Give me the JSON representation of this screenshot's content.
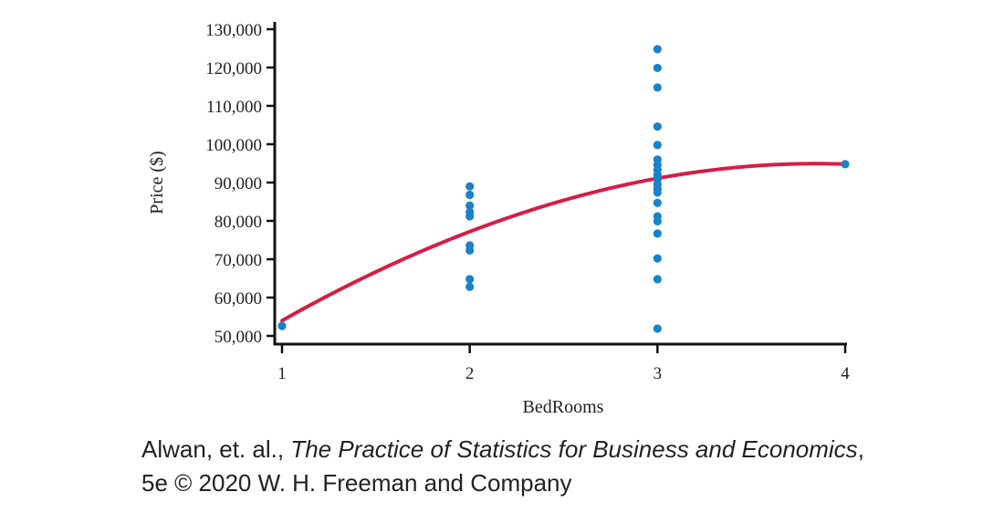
{
  "chart_data": {
    "type": "scatter",
    "xlabel": "BedRooms",
    "ylabel": "Price ($)",
    "xlim": [
      1,
      4
    ],
    "ylim": [
      50000,
      130000
    ],
    "x_ticks": [
      1,
      2,
      3,
      4
    ],
    "y_ticks": [
      50000,
      60000,
      70000,
      80000,
      90000,
      100000,
      110000,
      120000,
      130000
    ],
    "y_tick_labels": [
      "50,000",
      "60,000",
      "70,000",
      "80,000",
      "90,000",
      "100,000",
      "110,000",
      "120,000",
      "130,000"
    ],
    "x_tick_labels": [
      "1",
      "2",
      "3",
      "4"
    ],
    "grid": false,
    "legend": "none",
    "point_color": "#1a82c8",
    "curve_color": "#d41e45",
    "points": [
      {
        "x": 1,
        "y": 52600
      },
      {
        "x": 2,
        "y": 89000
      },
      {
        "x": 2,
        "y": 86800
      },
      {
        "x": 2,
        "y": 84000
      },
      {
        "x": 2,
        "y": 82300
      },
      {
        "x": 2,
        "y": 81200
      },
      {
        "x": 2,
        "y": 73600
      },
      {
        "x": 2,
        "y": 72300
      },
      {
        "x": 2,
        "y": 64800
      },
      {
        "x": 2,
        "y": 62800
      },
      {
        "x": 3,
        "y": 124800
      },
      {
        "x": 3,
        "y": 119900
      },
      {
        "x": 3,
        "y": 114800
      },
      {
        "x": 3,
        "y": 104600
      },
      {
        "x": 3,
        "y": 99800
      },
      {
        "x": 3,
        "y": 96000
      },
      {
        "x": 3,
        "y": 94600
      },
      {
        "x": 3,
        "y": 93300
      },
      {
        "x": 3,
        "y": 92000
      },
      {
        "x": 3,
        "y": 90800
      },
      {
        "x": 3,
        "y": 89500
      },
      {
        "x": 3,
        "y": 88300
      },
      {
        "x": 3,
        "y": 87400
      },
      {
        "x": 3,
        "y": 84700
      },
      {
        "x": 3,
        "y": 81200
      },
      {
        "x": 3,
        "y": 79900
      },
      {
        "x": 3,
        "y": 76700
      },
      {
        "x": 3,
        "y": 70200
      },
      {
        "x": 3,
        "y": 64800
      },
      {
        "x": 3,
        "y": 51900
      },
      {
        "x": 4,
        "y": 94800
      }
    ],
    "curve": {
      "type": "quadratic",
      "points": [
        {
          "x": 1,
          "y": 54000
        },
        {
          "x": 2,
          "y": 77200
        },
        {
          "x": 3,
          "y": 91100
        },
        {
          "x": 4,
          "y": 94800
        }
      ]
    }
  },
  "caption": {
    "authors": "Alwan, et. al., ",
    "book_title": "The Practice of Statistics for Business and Economics",
    "after_title": ",",
    "line2": "5e © 2020 W. H. Freeman and Company"
  }
}
